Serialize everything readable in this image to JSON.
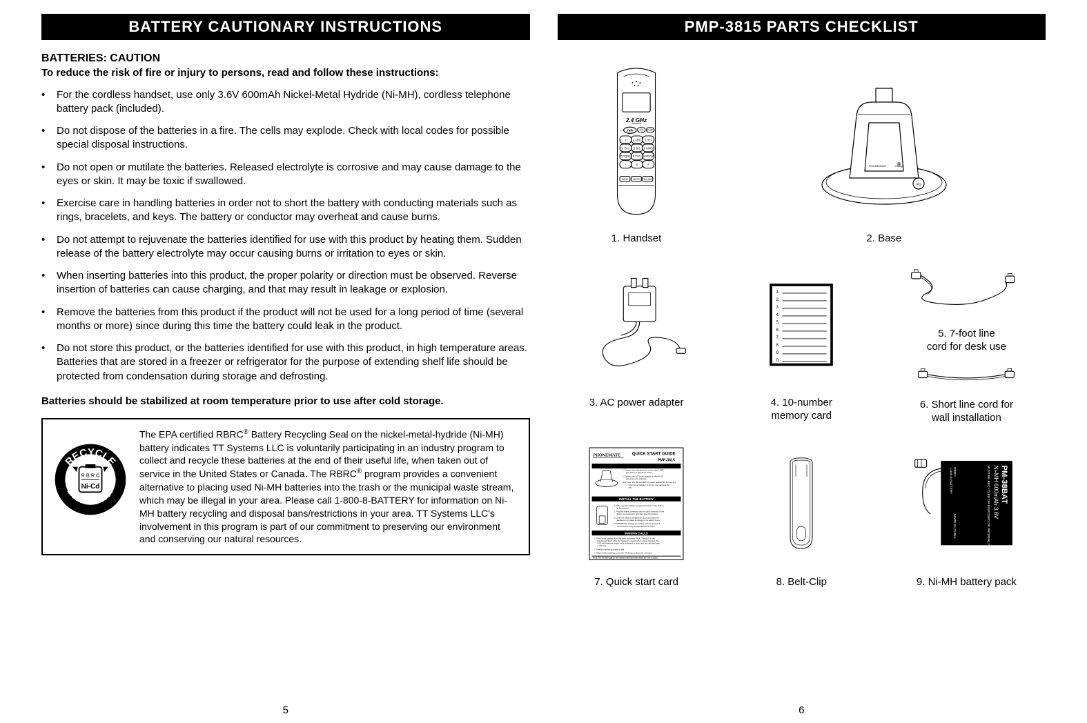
{
  "left": {
    "header": "BATTERY CAUTIONARY INSTRUCTIONS",
    "caution_title": "BATTERIES:  CAUTION",
    "caution_sub": "To reduce the risk of fire or injury to persons, read and follow these instructions:",
    "bullets": [
      "For the cordless handset, use only 3.6V 600mAh Nickel-Metal Hydride (Ni-MH), cordless telephone battery pack (included).",
      "Do not dispose of the batteries in a fire. The cells may explode. Check with local codes for possible special disposal instructions.",
      "Do not open or mutilate the batteries. Released electrolyte is corrosive and may cause damage to the eyes or skin. It may be toxic if swallowed.",
      "Exercise care in handling batteries in order not to short the battery with conducting materials such as rings, bracelets, and keys. The battery or conductor may overheat and cause burns.",
      "Do not attempt to rejuvenate the batteries identified for use with this product by heating them. Sudden release of the battery electrolyte may occur causing burns or irritation to eyes or skin.",
      "When inserting batteries into this product, the proper polarity or direction must be observed. Reverse insertion of batteries can cause charging, and that may result in leakage or explosion.",
      "Remove the batteries from this product if the product will not be used for a long period of time (several months or more) since during this time the battery could leak in the product.",
      "Do not store this product, or the batteries identified for use with this product, in high temperature areas. Batteries that are stored in a freezer or refrigerator for the purpose of extending shelf life should be protected from condensation during storage and defrosting."
    ],
    "bold_note": "Batteries should be stabilized at room temperature prior to use after cold storage.",
    "recycle_text_html": "The EPA certified RBRC<sup>®</sup> Battery Recycling Seal on the nickel-metal-hydride (Ni-MH) battery indicates TT Systems LLC is voluntarily participating in an industry program to collect and recycle these batteries at the end of their useful life, when taken out of service in the United States or Canada.  The RBRC<sup>®</sup> program provides a convenient alternative to placing used Ni-MH batteries into the trash or the municipal waste stream, which may be illegal in your area.  Please call 1-800-8-BATTERY for information on Ni-MH battery recycling and disposal bans/restrictions in your area.  TT Systems LLC's involvement in this program is part of our commitment to preserving our environment and conserving our natural resources.",
    "seal_text_top": "RECYCLE",
    "seal_text_center1": "R B R C",
    "seal_text_center2": "Ni-Cd",
    "seal_text_bottom": "1.800.822.8837",
    "page_num": "5"
  },
  "right": {
    "header": "PMP-3815 PARTS CHECKLIST",
    "parts": [
      {
        "label": "1. Handset"
      },
      {
        "label": "2. Base"
      },
      {
        "label": "3. AC power adapter"
      },
      {
        "label": "4. 10-number\n    memory card"
      },
      {
        "label": "5. 7-foot line\n    cord for desk use"
      },
      {
        "label": "6. Short line cord for\n    wall installation"
      },
      {
        "label": "7. Quick start card"
      },
      {
        "label": "8. Belt-Clip"
      },
      {
        "label": "9.  Ni-MH battery pack"
      }
    ],
    "handset": {
      "ghz_label": "2.4 GHz",
      "talk_btn": "Talk",
      "keypad": [
        "1",
        "2 ABC",
        "3 DEF",
        "4 GHI",
        "5 JKL",
        "6 MNO",
        "7 PQRS",
        "8 TUV",
        "9 WXYZ",
        "*",
        "0",
        "#"
      ],
      "row_labels_left": "In Use\nLow Bat",
      "btn_cid": "CID",
      "btn_phbk": "Ph BK",
      "bottom_btns": [
        "MEM",
        "MUTE",
        "Re-dial"
      ]
    },
    "memory_card_numbers": [
      "1.",
      "2.",
      "3.",
      "4.",
      "5.",
      "6.",
      "7.",
      "8.",
      "9.",
      "0."
    ],
    "quick_start": {
      "brand": "PHONEMATE",
      "title": "QUICK START GUIDE",
      "model": "PMP-3815",
      "section2": "INSTALL THE BATTERY",
      "section3": "MAKING CALLS"
    },
    "battery_label": {
      "model": "PM-38BAT",
      "spec": "Ni-MH 600mAh 3.6V",
      "warn": "MUST BE RECYCLED OR DISPOSED OF PROPERLY",
      "phone": "RBRC\n1-800-8-BATTERY",
      "made": "MADE IN CHINA"
    },
    "page_num": "6"
  },
  "colors": {
    "bg": "#ffffff",
    "header_bg": "#000000",
    "header_fg": "#ffffff",
    "text": "#000000",
    "stroke": "#000000"
  }
}
